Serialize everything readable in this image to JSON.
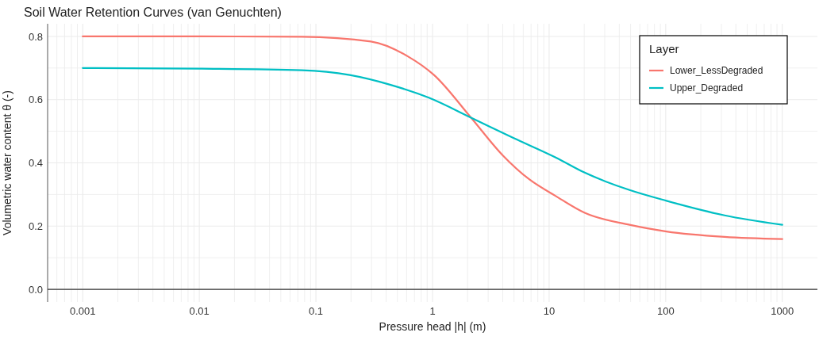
{
  "chart_data": {
    "type": "line",
    "title": "Soil Water Retention Curves (van Genuchten)",
    "xlabel": "Pressure head |h| (m)",
    "ylabel": "Volumetric water content θ (-)",
    "legend_title": "Layer",
    "legend": "top right",
    "grid": true,
    "log": "x",
    "line_style": "solid",
    "marker": "none",
    "xlim": [
      0.0005,
      2000
    ],
    "ylim": [
      -0.04,
      0.84
    ],
    "xticks": [
      {
        "value": 0.0006,
        "label": null
      },
      {
        "value": 0.0007,
        "label": null
      },
      {
        "value": 0.0008,
        "label": null
      },
      {
        "value": 0.0009,
        "label": null
      },
      0.001,
      {
        "value": 0.002,
        "label": null
      },
      {
        "value": 0.003,
        "label": null
      },
      {
        "value": 0.004,
        "label": null
      },
      {
        "value": 0.005,
        "label": null
      },
      {
        "value": 0.006,
        "label": null
      },
      {
        "value": 0.007,
        "label": null
      },
      {
        "value": 0.008,
        "label": null
      },
      {
        "value": 0.009,
        "label": null
      },
      0.01,
      {
        "value": 0.02,
        "label": null
      },
      {
        "value": 0.03,
        "label": null
      },
      {
        "value": 0.04,
        "label": null
      },
      {
        "value": 0.05,
        "label": null
      },
      {
        "value": 0.06,
        "label": null
      },
      {
        "value": 0.07,
        "label": null
      },
      {
        "value": 0.08,
        "label": null
      },
      {
        "value": 0.09,
        "label": null
      },
      0.1,
      {
        "value": 0.2,
        "label": null
      },
      {
        "value": 0.3,
        "label": null
      },
      {
        "value": 0.4,
        "label": null
      },
      {
        "value": 0.5,
        "label": null
      },
      {
        "value": 0.6,
        "label": null
      },
      {
        "value": 0.7,
        "label": null
      },
      {
        "value": 0.8,
        "label": null
      },
      {
        "value": 0.9,
        "label": null
      },
      1,
      {
        "value": 2,
        "label": null
      },
      {
        "value": 3,
        "label": null
      },
      {
        "value": 4,
        "label": null
      },
      {
        "value": 5,
        "label": null
      },
      {
        "value": 6,
        "label": null
      },
      {
        "value": 7,
        "label": null
      },
      {
        "value": 8,
        "label": null
      },
      {
        "value": 9,
        "label": null
      },
      10,
      {
        "value": 20,
        "label": null
      },
      {
        "value": 30,
        "label": null
      },
      {
        "value": 40,
        "label": null
      },
      {
        "value": 50,
        "label": null
      },
      {
        "value": 60,
        "label": null
      },
      {
        "value": 70,
        "label": null
      },
      {
        "value": 80,
        "label": null
      },
      {
        "value": 90,
        "label": null
      },
      100,
      {
        "value": 200,
        "label": null
      },
      {
        "value": 300,
        "label": null
      },
      {
        "value": 400,
        "label": null
      },
      {
        "value": 500,
        "label": null
      },
      {
        "value": 600,
        "label": null
      },
      {
        "value": 700,
        "label": null
      },
      {
        "value": 800,
        "label": null
      },
      {
        "value": 900,
        "label": null
      },
      1000
    ],
    "yticks": [
      {
        "value": 0,
        "label": "0.0"
      },
      {
        "value": 0.1,
        "label": null
      },
      {
        "value": 0.2,
        "label": "0.2"
      },
      {
        "value": 0.3,
        "label": null
      },
      {
        "value": 0.4,
        "label": "0.4"
      },
      {
        "value": 0.5,
        "label": null
      },
      {
        "value": 0.6,
        "label": "0.6"
      },
      {
        "value": 0.7,
        "label": null
      },
      {
        "value": 0.8,
        "label": "0.8"
      }
    ],
    "series": [
      {
        "name": "Lower_LessDegraded",
        "color": "#f8766d",
        "x": [
          0.001,
          0.01,
          0.076,
          0.296,
          0.614,
          1.03,
          2.14,
          4.0,
          6.75,
          11.4,
          20.2,
          49,
          101.6,
          320,
          1000
        ],
        "values": [
          0.8,
          0.8,
          0.799,
          0.784,
          0.737,
          0.678,
          0.543,
          0.424,
          0.348,
          0.295,
          0.242,
          0.204,
          0.183,
          0.166,
          0.159
        ]
      },
      {
        "name": "Upper_Degraded",
        "color": "#00bfc4",
        "x": [
          0.001,
          0.01,
          0.076,
          0.195,
          0.426,
          0.93,
          2.14,
          4.93,
          11.4,
          20.2,
          49,
          101.6,
          320,
          1000
        ],
        "values": [
          0.7,
          0.698,
          0.693,
          0.678,
          0.648,
          0.606,
          0.543,
          0.479,
          0.417,
          0.369,
          0.314,
          0.28,
          0.234,
          0.204
        ]
      }
    ]
  }
}
